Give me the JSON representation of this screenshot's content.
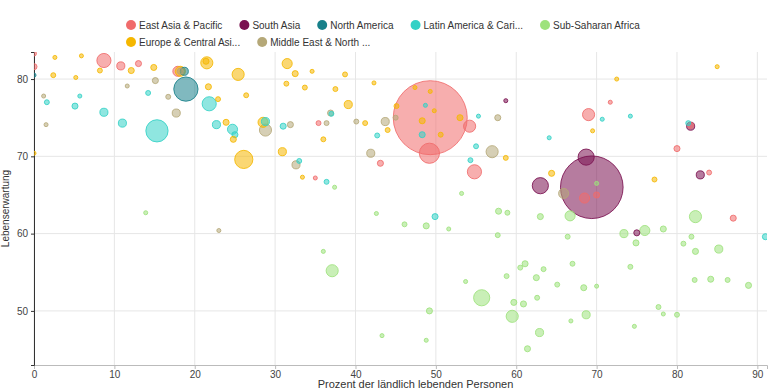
{
  "chart_data": {
    "type": "scatter",
    "x_label": "Prozent der ländlich lebenden Personen",
    "y_label": "Lebenserwartung",
    "xlim": [
      0,
      91.2
    ],
    "ylim": [
      43,
      83.5
    ],
    "xticks": [
      0,
      10,
      20,
      30,
      40,
      50,
      60,
      70,
      80,
      90
    ],
    "yticks": [
      50,
      60,
      70,
      80
    ],
    "grid": true,
    "legend": "top",
    "series": [
      {
        "name": "East Asia & Pacific",
        "color": "#f06b6b",
        "x": [
          8.7,
          49.3,
          49.2,
          54.8,
          54.2,
          69.0,
          68.5,
          80.0,
          81.7,
          10.8,
          0,
          0,
          43.1,
          17.9,
          87.0,
          84.0,
          35.0,
          35.4,
          70.0,
          71.7,
          13.0
        ],
        "values": [
          82.4,
          75.0,
          70.4,
          68.0,
          73.9,
          75.4,
          64.6,
          71.0,
          74.0,
          81.7,
          83.3,
          81.6,
          69.1,
          81.0,
          62.0,
          67.9,
          67.2,
          74.3,
          65.0,
          77.0,
          82.0
        ],
        "size": [
          49,
          1340,
          100,
          49,
          36,
          36,
          25,
          9,
          9,
          16,
          6,
          9,
          9,
          25,
          9,
          6,
          4,
          6,
          9,
          4,
          9
        ]
      },
      {
        "name": "South Asia",
        "color": "#7a1150",
        "x": [
          69.4,
          68.7,
          63.0,
          81.7,
          82.9,
          75.0,
          58.7
        ],
        "values": [
          66.0,
          69.9,
          66.2,
          73.9,
          67.6,
          60.1,
          77.2
        ],
        "size": [
          960,
          64,
          64,
          16,
          16,
          9,
          4
        ]
      },
      {
        "name": "North America",
        "color": "#17808a",
        "x": [
          18.9,
          18.7,
          0
        ],
        "values": [
          78.7,
          81.0,
          80.5
        ],
        "size": [
          144,
          16,
          4
        ]
      },
      {
        "name": "Latin America & Cari...",
        "color": "#33d1c6",
        "x": [
          15.3,
          21.8,
          8.7,
          11.0,
          22.7,
          24.7,
          25.0,
          1.6,
          5.1,
          5.7,
          14.2,
          28.8,
          31.0,
          33.0,
          36.4,
          37.0,
          42.7,
          48.3,
          49.9,
          54.3,
          64.1,
          70.7,
          74.2,
          81.4,
          91.0,
          55.0,
          55.3,
          48.7
        ],
        "values": [
          73.3,
          76.8,
          75.7,
          74.3,
          74.1,
          73.5,
          72.8,
          77.0,
          76.5,
          77.8,
          78.2,
          74.5,
          73.9,
          69.4,
          66.7,
          75.5,
          72.7,
          72.8,
          62.2,
          69.5,
          72.4,
          74.8,
          75.2,
          74.3,
          59.6,
          71.3,
          75.2,
          76.6
        ],
        "size": [
          121,
          49,
          16,
          16,
          16,
          25,
          9,
          6,
          9,
          4,
          6,
          16,
          9,
          6,
          6,
          6,
          6,
          9,
          9,
          6,
          4,
          4,
          4,
          6,
          9,
          6,
          4,
          4
        ]
      },
      {
        "name": "Sub-Saharan Africa",
        "color": "#9de27c",
        "x": [
          37.1,
          55.7,
          59.5,
          59.7,
          60.9,
          62.9,
          61.4,
          49.2,
          48.8,
          43.3,
          53.7,
          58.8,
          60.5,
          61.1,
          62.5,
          63.4,
          65.1,
          67.0,
          68.4,
          68.7,
          66.7,
          73.4,
          74.9,
          76.0,
          78.3,
          82.3,
          85.2,
          82.3,
          84.2,
          82.2,
          77.7,
          78.3,
          88.9,
          80.8,
          46.1,
          48.8,
          51.6,
          57.7,
          57.8,
          58.9,
          63.0,
          53.2,
          42.6,
          36.0,
          37.4,
          13.9,
          62.6,
          74.2,
          80.0,
          66.8,
          74.7,
          81.8,
          66.4,
          70.0,
          86.3,
          70.0
        ],
        "values": [
          55.2,
          51.7,
          49.3,
          51.1,
          50.9,
          47.2,
          45.1,
          50.0,
          46.2,
          46.8,
          53.8,
          54.5,
          55.6,
          56.1,
          54.3,
          55.4,
          53.4,
          56.1,
          53.0,
          49.5,
          62.3,
          60.0,
          58.8,
          60.4,
          60.6,
          62.2,
          58.0,
          57.7,
          54.1,
          54.0,
          50.5,
          49.6,
          53.3,
          58.7,
          61.2,
          61.0,
          60.6,
          59.8,
          62.9,
          62.7,
          62.2,
          65.2,
          62.6,
          57.7,
          66.0,
          62.7,
          51.7,
          55.7,
          49.5,
          48.7,
          48.0,
          59.6,
          59.6,
          53.2,
          54.0,
          66.5
        ],
        "size": [
          36,
          64,
          36,
          9,
          9,
          16,
          9,
          9,
          4,
          4,
          4,
          6,
          6,
          9,
          9,
          6,
          6,
          6,
          9,
          16,
          25,
          16,
          9,
          25,
          9,
          36,
          16,
          9,
          9,
          6,
          6,
          4,
          9,
          6,
          6,
          9,
          4,
          6,
          9,
          6,
          9,
          4,
          4,
          4,
          4,
          4,
          6,
          6,
          6,
          4,
          4,
          6,
          6,
          4,
          6,
          4
        ]
      },
      {
        "name": "Europe & Central Asi...",
        "color": "#f5b700",
        "x": [
          26.1,
          21.5,
          25.4,
          31.5,
          28.5,
          32.5,
          2.6,
          5.9,
          8.2,
          12.1,
          14.9,
          18.2,
          21.4,
          2.4,
          5.2,
          21.7,
          22.9,
          26.4,
          31.4,
          33.7,
          37.5,
          38.7,
          34.6,
          39.1,
          42.3,
          45.1,
          47.4,
          49.3,
          53.0,
          48.3,
          50.6,
          44.0,
          41.2,
          36.0,
          30.9,
          24.8,
          58.7,
          64.4,
          77.2,
          72.5,
          85.0,
          69.5,
          0,
          49.8,
          33.4,
          23.9
        ],
        "values": [
          69.6,
          82.1,
          80.6,
          82.0,
          74.4,
          80.7,
          82.8,
          83.0,
          81.1,
          81.1,
          81.5,
          81.0,
          82.3,
          80.5,
          80.2,
          79.0,
          77.4,
          77.9,
          79.4,
          78.9,
          78.7,
          80.6,
          81.0,
          76.7,
          79.5,
          76.5,
          78.9,
          78.4,
          75.0,
          74.6,
          72.8,
          73.4,
          74.3,
          72.2,
          70.6,
          72.2,
          69.8,
          67.8,
          67.0,
          80.0,
          81.6,
          73.3,
          70.4,
          75.9,
          67.3,
          74.4
        ],
        "size": [
          81,
          36,
          36,
          25,
          25,
          9,
          4,
          4,
          6,
          9,
          9,
          25,
          9,
          6,
          4,
          9,
          6,
          6,
          6,
          6,
          6,
          6,
          4,
          16,
          4,
          6,
          4,
          4,
          9,
          9,
          6,
          6,
          6,
          6,
          16,
          9,
          6,
          9,
          6,
          4,
          4,
          4,
          4,
          4,
          4,
          9
        ]
      },
      {
        "name": "Middle East & North ...",
        "color": "#b5a878",
        "x": [
          28.8,
          36.9,
          57.0,
          41.9,
          17.7,
          18.2,
          1.2,
          1.5,
          23.0,
          31.9,
          32.6,
          36.4,
          40.1,
          43.7,
          45.0,
          57.7,
          65.9,
          16.7,
          11.6,
          15.1
        ],
        "values": [
          73.4,
          75.6,
          70.6,
          70.4,
          75.6,
          81.0,
          77.8,
          74.1,
          60.4,
          74.1,
          68.9,
          74.3,
          74.5,
          74.5,
          75.0,
          75.0,
          65.2,
          77.7,
          79.1,
          79.8
        ],
        "size": [
          36,
          9,
          36,
          16,
          16,
          9,
          4,
          4,
          4,
          9,
          16,
          6,
          6,
          16,
          6,
          9,
          25,
          6,
          4,
          9
        ]
      }
    ]
  }
}
